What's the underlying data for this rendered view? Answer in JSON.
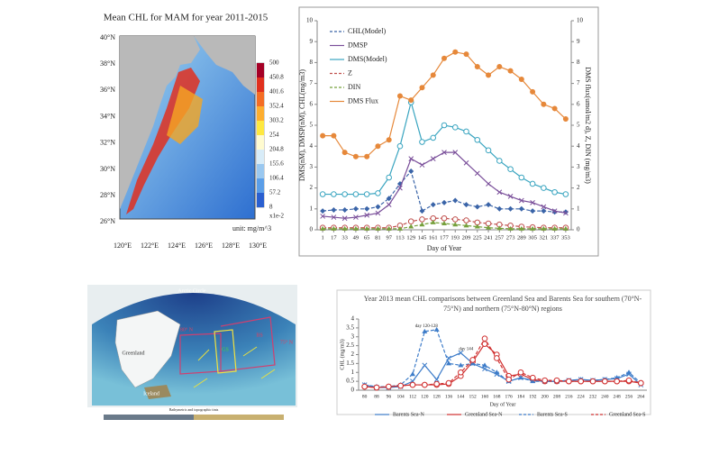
{
  "map_top": {
    "title": "Mean CHL for MAM for year 2011-2015",
    "lat_labels": [
      "40°N",
      "38°N",
      "36°N",
      "34°N",
      "32°N",
      "30°N",
      "28°N",
      "26°N"
    ],
    "lon_labels": [
      "120°E",
      "122°E",
      "124°E",
      "126°E",
      "128°E",
      "130°E"
    ],
    "colorbar_labels": [
      "500",
      "450.8",
      "401.6",
      "352.4",
      "303.2",
      "254",
      "204.8",
      "155.6",
      "106.4",
      "57.2",
      "8"
    ],
    "scale_note": "x1e-2",
    "unit": "unit: mg/m^3"
  },
  "map_bottom": {
    "labels": [
      "Arctic Circle",
      "Greenland",
      "80° N",
      "GS",
      "BS",
      "75° N",
      "Iceland"
    ],
    "caption": "Bathymetric and topographic tints"
  },
  "chart_data": [
    {
      "type": "line",
      "x_label": "Day of Year",
      "y_label": "DMS(nM), DMSP(nM), CHL(mg/m3)",
      "y2_label": "DMS flux(umol/m2 d), Z, DIN (mg/m3)",
      "x": [
        1,
        17,
        33,
        49,
        65,
        81,
        97,
        113,
        129,
        145,
        161,
        177,
        193,
        209,
        225,
        241,
        257,
        273,
        289,
        305,
        321,
        337,
        353
      ],
      "xlim": [
        -7,
        361
      ],
      "xticks": [
        1,
        17,
        33,
        49,
        65,
        81,
        97,
        113,
        129,
        145,
        161,
        177,
        193,
        209,
        225,
        241,
        257,
        273,
        289,
        305,
        321,
        337,
        353
      ],
      "ylim": [
        0,
        10
      ],
      "yticks": [
        0,
        1,
        2,
        3,
        4,
        5,
        6,
        7,
        8,
        9,
        10
      ],
      "y2lim": [
        0,
        10
      ],
      "y2ticks": [
        0,
        1,
        2,
        3,
        4,
        5,
        6,
        7,
        8,
        9,
        10
      ],
      "legend": "upper left",
      "series": [
        {
          "name": "CHL(Model)",
          "color": "#3a64a8",
          "marker": "diamond",
          "dash": true,
          "values": [
            0.9,
            0.95,
            0.95,
            1,
            1,
            1.1,
            1.5,
            2.2,
            2.8,
            0.9,
            1.2,
            1.3,
            1.4,
            1.2,
            1.1,
            1.2,
            1,
            1,
            1,
            0.9,
            0.9,
            0.85,
            0.85
          ]
        },
        {
          "name": "DMSP",
          "color": "#7a4f9a",
          "marker": "x",
          "dash": false,
          "values": [
            0.65,
            0.6,
            0.55,
            0.6,
            0.7,
            0.8,
            1.2,
            2,
            3.4,
            3.1,
            3.4,
            3.7,
            3.7,
            3.2,
            2.7,
            2.2,
            1.8,
            1.6,
            1.4,
            1.3,
            1.1,
            0.9,
            0.8
          ]
        },
        {
          "name": "DMS(Model)",
          "color": "#3aa5c0",
          "marker": "circle-open",
          "dash": false,
          "values": [
            1.7,
            1.7,
            1.7,
            1.7,
            1.7,
            1.75,
            2.5,
            4,
            6.1,
            4.2,
            4.4,
            5,
            4.9,
            4.7,
            4.3,
            3.8,
            3.3,
            2.9,
            2.5,
            2.2,
            2,
            1.8,
            1.7
          ]
        },
        {
          "name": "Z",
          "color": "#c0504d",
          "marker": "circle-open",
          "dash": true,
          "axis": "y2",
          "values": [
            0.1,
            0.1,
            0.1,
            0.1,
            0.1,
            0.1,
            0.1,
            0.2,
            0.4,
            0.5,
            0.55,
            0.55,
            0.5,
            0.45,
            0.35,
            0.3,
            0.25,
            0.2,
            0.15,
            0.12,
            0.1,
            0.1,
            0.1
          ]
        },
        {
          "name": "DIN",
          "color": "#76a03c",
          "marker": "triangle",
          "dash": true,
          "axis": "y2",
          "values": [
            0.05,
            0.05,
            0.05,
            0.05,
            0.05,
            0.05,
            0.05,
            0.05,
            0.15,
            0.25,
            0.35,
            0.3,
            0.25,
            0.2,
            0.15,
            0.1,
            0.07,
            0.05,
            0.05,
            0.05,
            0.05,
            0.05,
            0.05
          ]
        },
        {
          "name": "DMS Flux",
          "color": "#e6883a",
          "marker": "circle",
          "dash": false,
          "axis": "y2",
          "values": [
            4.5,
            4.5,
            3.7,
            3.5,
            3.5,
            4,
            4.3,
            6.4,
            6.2,
            6.8,
            7.4,
            8.2,
            8.5,
            8.4,
            7.8,
            7.4,
            7.8,
            7.6,
            7.2,
            6.6,
            6,
            5.8,
            5.3
          ]
        }
      ]
    },
    {
      "type": "line",
      "title": "Year 2013 mean CHL comparisons between Greenland Sea and Barents Sea for southern (70°N-75°N) and northern (75°N-80°N) regions",
      "x_label": "Day of Year",
      "y_label": "CHL (mg/m3)",
      "categories": [
        "80",
        "88",
        "96",
        "104",
        "112",
        "120",
        "128",
        "136",
        "144",
        "152",
        "160",
        "168",
        "176",
        "184",
        "192",
        "200",
        "208",
        "216",
        "224",
        "232",
        "240",
        "248",
        "256",
        "264"
      ],
      "ylim": [
        0,
        4
      ],
      "yticks": [
        0,
        0.5,
        1,
        1.5,
        2,
        2.5,
        3,
        3.5,
        4
      ],
      "legend": "bottom",
      "annotations": [
        "day 120-128",
        "day 144"
      ],
      "series": [
        {
          "name": "Barents Sea-N",
          "color": "#3d7cc9",
          "marker": "x",
          "dash": false,
          "values": [
            0.3,
            0.15,
            0.15,
            0.2,
            0.5,
            1.4,
            0.6,
            1.8,
            2.1,
            1.5,
            1.2,
            0.9,
            0.5,
            0.7,
            0.55,
            0.5,
            0.5,
            0.55,
            0.6,
            0.55,
            0.6,
            0.65,
            0.9,
            0.3
          ]
        },
        {
          "name": "Greenland Sea-N",
          "color": "#d03030",
          "marker": "circle-open",
          "dash": false,
          "values": [
            0.2,
            0.15,
            0.2,
            0.25,
            0.3,
            0.3,
            0.3,
            0.35,
            0.8,
            1.6,
            2.6,
            2,
            0.8,
            0.9,
            0.6,
            0.5,
            0.5,
            0.5,
            0.5,
            0.5,
            0.5,
            0.5,
            0.5,
            0.4
          ]
        },
        {
          "name": "Barents Sea-S",
          "color": "#3d7cc9",
          "marker": "triangle",
          "dash": true,
          "values": [
            0.3,
            0.2,
            0.2,
            0.3,
            0.9,
            3.3,
            3.4,
            1.5,
            1.4,
            1.5,
            1.4,
            1,
            0.5,
            0.7,
            0.5,
            0.5,
            0.5,
            0.55,
            0.6,
            0.55,
            0.6,
            0.7,
            1,
            0.4
          ]
        },
        {
          "name": "Greenland Sea-S",
          "color": "#d03030",
          "marker": "circle-open",
          "dash": true,
          "values": [
            0.2,
            0.15,
            0.2,
            0.25,
            0.3,
            0.3,
            0.35,
            0.4,
            1,
            1.7,
            2.9,
            1.8,
            0.6,
            1,
            0.7,
            0.55,
            0.55,
            0.5,
            0.5,
            0.5,
            0.5,
            0.5,
            0.55,
            0.4
          ]
        }
      ]
    }
  ]
}
